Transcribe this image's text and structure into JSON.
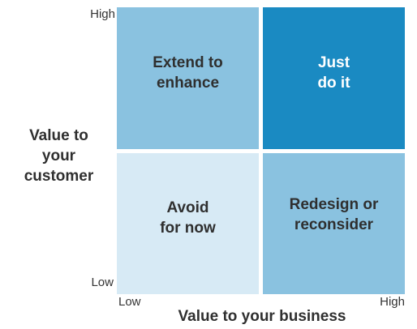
{
  "matrix": {
    "quadrants": {
      "top_left": "Extend to\nenhance",
      "top_right": "Just\ndo it",
      "bottom_left": "Avoid\nfor now",
      "bottom_right": "Redesign or\nreconsider"
    },
    "colors": {
      "top_left": "#8ac2e0",
      "top_right": "#1a8ac2",
      "bottom_left": "#d7eaf5",
      "bottom_right": "#8ac2e0"
    }
  },
  "y_axis": {
    "title": "Value to\nyour\ncustomer",
    "high": "High",
    "low": "Low"
  },
  "x_axis": {
    "title": "Value to your business",
    "low": "Low",
    "high": "High"
  }
}
